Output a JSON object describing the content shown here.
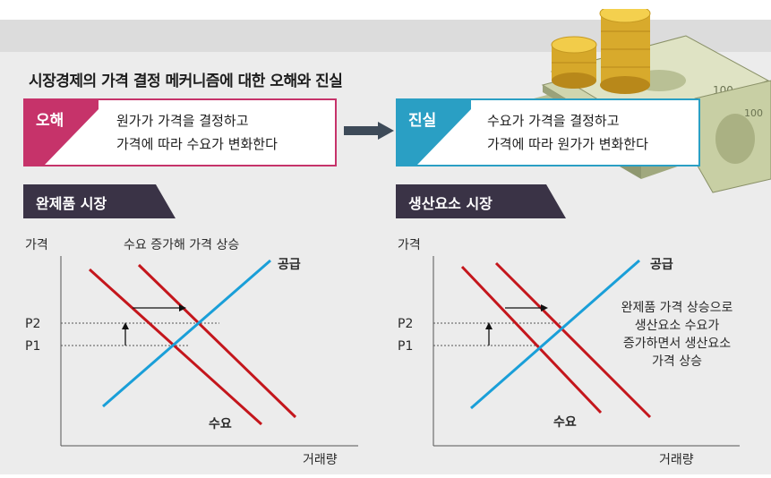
{
  "title": "시장경제의 가격 결정 메커니즘에 대한 오해와 진실",
  "myth": {
    "tag": "오해",
    "line1": "원가가 가격을 결정하고",
    "line2": "가격에 따라 수요가 변화한다"
  },
  "truth": {
    "tag": "진실",
    "line1": "수요가 가격을 결정하고",
    "line2": "가격에 따라 원가가 변화한다"
  },
  "left_chart": {
    "section": "완제품 시장",
    "ylabel": "가격",
    "xlabel": "거래량",
    "annotation": "수요 증가해 가격 상승",
    "supply": "공급",
    "demand": "수요",
    "p2": "P2",
    "p1": "P1"
  },
  "right_chart": {
    "section": "생산요소 시장",
    "ylabel": "가격",
    "xlabel": "거래량",
    "annotation": [
      "완제품 가격 상승으로",
      "생산요소 수요가",
      "증가하면서 생산요소",
      "가격 상승"
    ],
    "supply": "공급",
    "demand": "수요",
    "p2": "P2",
    "p1": "P1"
  },
  "colors": {
    "myth": "#c6336a",
    "truth": "#2a9fc4",
    "demand": "#c4161c",
    "supply": "#1a9fd8",
    "section_bg": "#3a3346"
  }
}
